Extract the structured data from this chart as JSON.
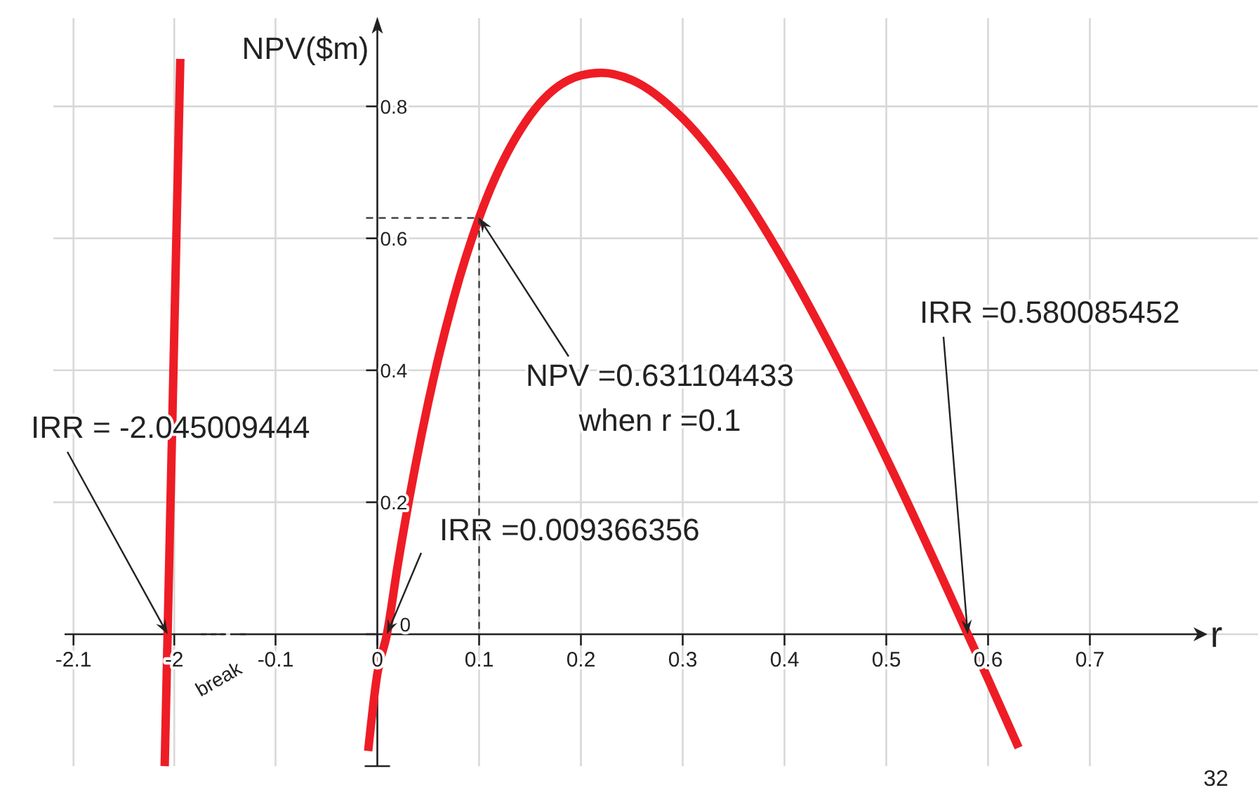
{
  "chart_data": [
    {
      "type": "line",
      "xlim": [
        -2.12,
        -1.95
      ],
      "xticks": [
        -2.1,
        -2
      ],
      "ylim": [
        -0.2,
        0.94
      ],
      "yticks": [
        0.2,
        0.4,
        0.6,
        0.8
      ],
      "grid": true,
      "tick_labels": "x",
      "series": [
        {
          "color": "#ee1c25",
          "x": [
            -2.0095,
            -1.994
          ],
          "values": [
            -0.2,
            0.872
          ]
        }
      ],
      "annotations": [
        {
          "text": "IRR = -2.045009444",
          "x": -2.0066,
          "y": 0
        },
        "break"
      ]
    },
    {
      "type": "line",
      "xlim": [
        -0.15,
        0.81
      ],
      "xticks": [
        -0.1,
        0,
        0.1,
        0.2,
        0.3,
        0.4,
        0.5,
        0.6,
        0.7
      ],
      "ylim": [
        -0.2,
        0.94
      ],
      "yticks": [
        {
          "value": 0,
          "label": "0"
        },
        0.2,
        0.4,
        0.6,
        0.8
      ],
      "grid": true,
      "xlabel": "r",
      "ylabel": "NPV($m)",
      "series": [
        {
          "color": "#ee1c25",
          "x": [
            -0.009,
            0,
            0.0094,
            0.02,
            0.05,
            0.075,
            0.1,
            0.15,
            0.2,
            0.22,
            0.25,
            0.3,
            0.35,
            0.4,
            0.45,
            0.5,
            0.55,
            0.58,
            0.6,
            0.63
          ],
          "values": [
            -0.177,
            -0.06,
            0,
            0.104,
            0.351,
            0.509,
            0.631,
            0.786,
            0.847,
            0.851,
            0.84,
            0.782,
            0.687,
            0.564,
            0.422,
            0.267,
            0.102,
            0,
            -0.068,
            -0.172
          ]
        }
      ],
      "annotations": [
        {
          "text": "NPV =0.631104433\nwhen r =0.1",
          "x": 0.1,
          "y": 0.631
        },
        {
          "text": "IRR =0.580085452",
          "x": 0.58,
          "y": 0
        },
        {
          "text": "IRR =0.009366356",
          "x": 0.0094,
          "y": 0
        },
        "32"
      ]
    }
  ]
}
